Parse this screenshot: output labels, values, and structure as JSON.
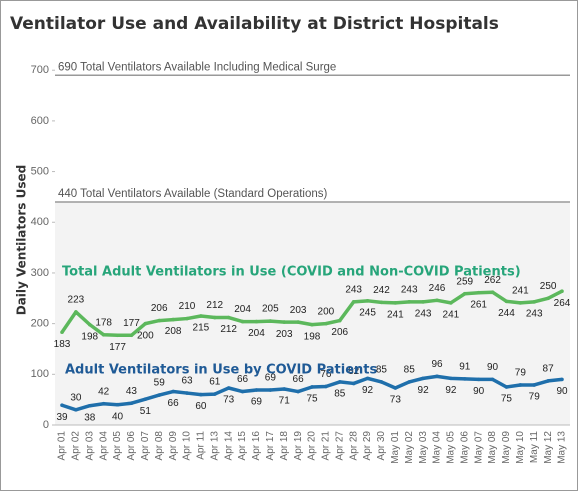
{
  "chart_data": {
    "type": "line",
    "title": "Ventilator Use and Availability at District Hospitals",
    "y_label": "Daily Ventilators Used",
    "categories": [
      "Apr 01",
      "Apr 02",
      "Apr 03",
      "Apr 04",
      "Apr 05",
      "Apr 06",
      "Apr 07",
      "Apr 08",
      "Apr 09",
      "Apr 10",
      "Apr 11",
      "Apr 13",
      "Apr 14",
      "Apr 15",
      "Apr 16",
      "Apr 17",
      "Apr 18",
      "Apr 19",
      "Apr 20",
      "Apr 21",
      "Apr 27",
      "Apr 28",
      "Apr 29",
      "Apr 30",
      "May 01",
      "May 02",
      "May 03",
      "May 04",
      "May 05",
      "May 06",
      "May 07",
      "May 08",
      "May 09",
      "May 10",
      "May 11",
      "May 12",
      "May 13"
    ],
    "series": [
      {
        "name": "Total Adult Ventilators in Use (COVID and Non-COVID Patients)",
        "color": "#5cb85c",
        "label_color": "#27a57a",
        "values": [
          183,
          223,
          198,
          178,
          177,
          177,
          200,
          206,
          208,
          210,
          215,
          212,
          212,
          204,
          204,
          205,
          203,
          203,
          198,
          200,
          206,
          243,
          245,
          242,
          241,
          243,
          243,
          246,
          241,
          259,
          261,
          262,
          244,
          241,
          243,
          250,
          264
        ]
      },
      {
        "name": "Adult Ventilators in Use by COVID Patients",
        "color": "#1f6fab",
        "label_color": "#1f5a96",
        "values": [
          39,
          30,
          38,
          42,
          40,
          43,
          51,
          59,
          66,
          63,
          60,
          61,
          73,
          66,
          69,
          69,
          71,
          66,
          75,
          76,
          85,
          82,
          92,
          85,
          73,
          85,
          92,
          96,
          92,
          91,
          90,
          90,
          75,
          79,
          79,
          87,
          90
        ]
      }
    ],
    "reference_lines": [
      {
        "value": 690,
        "label": "690 Total Ventilators Available Including Medical Surge"
      },
      {
        "value": 440,
        "label": "440 Total Ventilators Available (Standard Operations)"
      }
    ],
    "ylim": [
      0,
      730
    ],
    "yticks": [
      0,
      100,
      200,
      300,
      400,
      500,
      600,
      700
    ],
    "grid": false
  }
}
